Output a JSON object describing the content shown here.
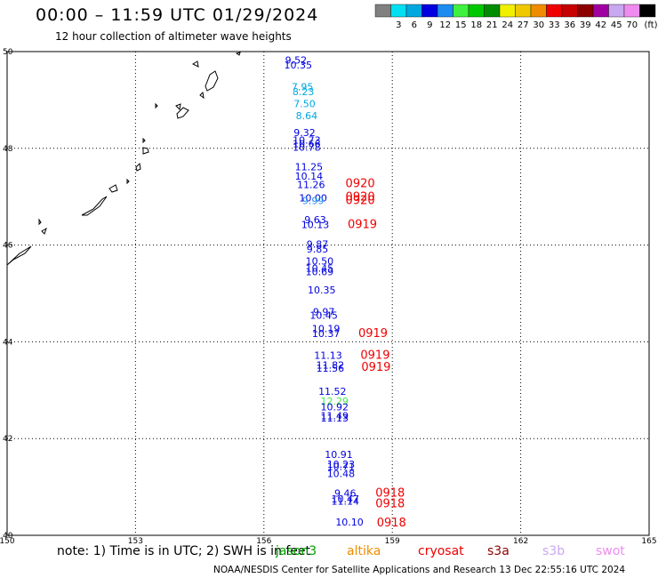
{
  "header": {
    "title": "00:00 – 11:59 UTC 01/29/2024",
    "subtitle": "12 hour collection of altimeter wave heights"
  },
  "legend": {
    "unit": "(ft)",
    "entries": [
      {
        "color": "#808080",
        "label": ""
      },
      {
        "color": "#00e0f0",
        "label": "3"
      },
      {
        "color": "#00a8e0",
        "label": "6"
      },
      {
        "color": "#0000e0",
        "label": "9"
      },
      {
        "color": "#1c8cf0",
        "label": "12"
      },
      {
        "color": "#40f040",
        "label": "15"
      },
      {
        "color": "#00c800",
        "label": "18"
      },
      {
        "color": "#008c00",
        "label": "21"
      },
      {
        "color": "#f0f000",
        "label": "24"
      },
      {
        "color": "#f0c800",
        "label": "27"
      },
      {
        "color": "#f08c00",
        "label": "30"
      },
      {
        "color": "#f00000",
        "label": "33"
      },
      {
        "color": "#c80000",
        "label": "36"
      },
      {
        "color": "#8c0000",
        "label": "39"
      },
      {
        "color": "#a000a0",
        "label": "42"
      },
      {
        "color": "#c8a8f0",
        "label": "45"
      },
      {
        "color": "#f08cf0",
        "label": "70"
      },
      {
        "color": "#000000",
        "label": ""
      }
    ]
  },
  "map": {
    "lat_ticks": [
      "40",
      "42",
      "44",
      "46",
      "48",
      "50"
    ],
    "lon_ticks": [
      "150",
      "153",
      "156",
      "159",
      "162",
      "165"
    ],
    "lat_range": [
      40,
      50
    ],
    "lon_range": [
      150,
      165
    ]
  },
  "chart_data": {
    "type": "scatter",
    "xlabel": "",
    "ylabel": "",
    "observations": [
      {
        "label": "9.52",
        "lat": 49.75,
        "lon": 156.75,
        "color": "#0000e0"
      },
      {
        "label": "10.35",
        "lat": 49.65,
        "lon": 156.8,
        "color": "#0000e0"
      },
      {
        "label": "7.95",
        "lat": 49.2,
        "lon": 156.9,
        "color": "#00a8e0"
      },
      {
        "label": "8.23",
        "lat": 49.1,
        "lon": 156.92,
        "color": "#00a8e0"
      },
      {
        "label": "7.50",
        "lat": 48.85,
        "lon": 156.95,
        "color": "#00a8e0"
      },
      {
        "label": "8.64",
        "lat": 48.6,
        "lon": 157.0,
        "color": "#00a8e0"
      },
      {
        "label": "9.32",
        "lat": 48.25,
        "lon": 156.95,
        "color": "#0000e0"
      },
      {
        "label": "10.73",
        "lat": 48.1,
        "lon": 157.0,
        "color": "#0000e0"
      },
      {
        "label": "10.66",
        "lat": 48.02,
        "lon": 157.0,
        "color": "#0000e0"
      },
      {
        "label": "10.78",
        "lat": 47.95,
        "lon": 157.0,
        "color": "#0000e0"
      },
      {
        "label": "11.25",
        "lat": 47.55,
        "lon": 157.05,
        "color": "#0000e0"
      },
      {
        "label": "10.14",
        "lat": 47.35,
        "lon": 157.05,
        "color": "#0000e0"
      },
      {
        "label": "11.26",
        "lat": 47.18,
        "lon": 157.1,
        "color": "#0000e0"
      },
      {
        "label": "10.00",
        "lat": 46.9,
        "lon": 157.15,
        "color": "#0000e0"
      },
      {
        "label": "9.99",
        "lat": 46.85,
        "lon": 157.15,
        "color": "#1c8cf0"
      },
      {
        "label": "9.63",
        "lat": 46.45,
        "lon": 157.2,
        "color": "#0000e0"
      },
      {
        "label": "10.13",
        "lat": 46.35,
        "lon": 157.2,
        "color": "#0000e0"
      },
      {
        "label": "9.87",
        "lat": 45.95,
        "lon": 157.25,
        "color": "#0000e0"
      },
      {
        "label": "9.85",
        "lat": 45.85,
        "lon": 157.25,
        "color": "#0000e0"
      },
      {
        "label": "10.50",
        "lat": 45.6,
        "lon": 157.3,
        "color": "#0000e0"
      },
      {
        "label": "10.45",
        "lat": 45.45,
        "lon": 157.3,
        "color": "#0000e0"
      },
      {
        "label": "10.69",
        "lat": 45.38,
        "lon": 157.3,
        "color": "#0000e0"
      },
      {
        "label": "10.35",
        "lat": 45.0,
        "lon": 157.35,
        "color": "#0000e0"
      },
      {
        "label": "9.97",
        "lat": 44.55,
        "lon": 157.4,
        "color": "#0000e0"
      },
      {
        "label": "10.45",
        "lat": 44.48,
        "lon": 157.4,
        "color": "#0000e0"
      },
      {
        "label": "10.19",
        "lat": 44.2,
        "lon": 157.45,
        "color": "#0000e0"
      },
      {
        "label": "10.37",
        "lat": 44.1,
        "lon": 157.45,
        "color": "#0000e0"
      },
      {
        "label": "11.13",
        "lat": 43.65,
        "lon": 157.5,
        "color": "#0000e0"
      },
      {
        "label": "11.82",
        "lat": 43.45,
        "lon": 157.55,
        "color": "#0000e0"
      },
      {
        "label": "11.56",
        "lat": 43.38,
        "lon": 157.55,
        "color": "#0000e0"
      },
      {
        "label": "11.52",
        "lat": 42.9,
        "lon": 157.6,
        "color": "#0000e0"
      },
      {
        "label": "12.29",
        "lat": 42.7,
        "lon": 157.65,
        "color": "#40f040"
      },
      {
        "label": "10.92",
        "lat": 42.58,
        "lon": 157.65,
        "color": "#0000e0"
      },
      {
        "label": "11.49",
        "lat": 42.4,
        "lon": 157.65,
        "color": "#0000e0"
      },
      {
        "label": "11.13",
        "lat": 42.35,
        "lon": 157.65,
        "color": "#0000e0"
      },
      {
        "label": "10.91",
        "lat": 41.6,
        "lon": 157.75,
        "color": "#0000e0"
      },
      {
        "label": "10.23",
        "lat": 41.4,
        "lon": 157.8,
        "color": "#0000e0"
      },
      {
        "label": "10.71",
        "lat": 41.35,
        "lon": 157.8,
        "color": "#0000e0"
      },
      {
        "label": "10.48",
        "lat": 41.2,
        "lon": 157.8,
        "color": "#0000e0"
      },
      {
        "label": "9.46",
        "lat": 40.8,
        "lon": 157.9,
        "color": "#0000e0"
      },
      {
        "label": "10.47",
        "lat": 40.68,
        "lon": 157.9,
        "color": "#0000e0"
      },
      {
        "label": "11.14",
        "lat": 40.63,
        "lon": 157.9,
        "color": "#0000e0"
      },
      {
        "label": "10.10",
        "lat": 40.2,
        "lon": 158.0,
        "color": "#0000e0"
      }
    ],
    "pass_times": [
      {
        "label": "0920",
        "lat": 47.2,
        "lon": 158.25,
        "color": "#f00000"
      },
      {
        "label": "0920",
        "lat": 46.92,
        "lon": 158.25,
        "color": "#f00000"
      },
      {
        "label": "0920",
        "lat": 46.85,
        "lon": 158.25,
        "color": "#f00000"
      },
      {
        "label": "0919",
        "lat": 46.35,
        "lon": 158.3,
        "color": "#f00000"
      },
      {
        "label": "0919",
        "lat": 44.1,
        "lon": 158.55,
        "color": "#f00000"
      },
      {
        "label": "0919",
        "lat": 43.65,
        "lon": 158.6,
        "color": "#f00000"
      },
      {
        "label": "0919",
        "lat": 43.4,
        "lon": 158.62,
        "color": "#f00000"
      },
      {
        "label": "0918",
        "lat": 40.8,
        "lon": 158.95,
        "color": "#f00000"
      },
      {
        "label": "0918",
        "lat": 40.58,
        "lon": 158.95,
        "color": "#f00000"
      },
      {
        "label": "0918",
        "lat": 40.18,
        "lon": 158.98,
        "color": "#f00000"
      }
    ]
  },
  "footer": {
    "note": "note: 1) Time is in UTC; 2) SWH is in feet",
    "satellites": [
      {
        "name": "jason3",
        "color": "#00a000"
      },
      {
        "name": "altika",
        "color": "#f08c00"
      },
      {
        "name": "cryosat",
        "color": "#f00000"
      },
      {
        "name": "s3a",
        "color": "#8c0000"
      },
      {
        "name": "s3b",
        "color": "#c8a8f0"
      },
      {
        "name": "swot",
        "color": "#f08cf0"
      }
    ],
    "credit": "NOAA/NESDIS Center for Satellite Applications and Research    13 Dec 22:55:16 UTC 2024"
  }
}
